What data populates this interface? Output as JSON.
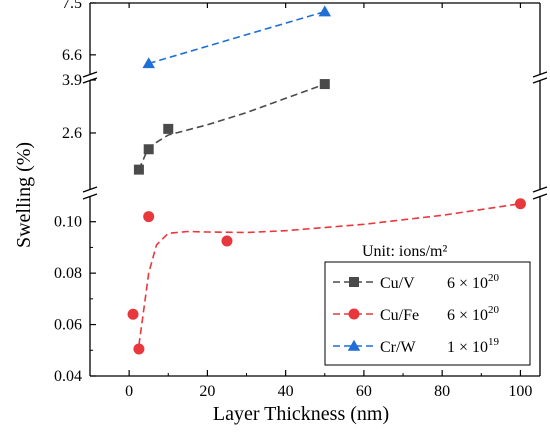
{
  "chart_data": {
    "type": "scatter",
    "xlabel": "Layer Thickness (nm)",
    "ylabel": "Swelling (%)",
    "xlim": [
      -10,
      105
    ],
    "x_ticks": [
      "0",
      "20",
      "40",
      "60",
      "80",
      "100"
    ],
    "x_tick_values": [
      0,
      20,
      40,
      60,
      80,
      100
    ],
    "y_segments": [
      {
        "name": "lower",
        "ylim": [
          0.04,
          0.11
        ],
        "ticks": [
          "0.04",
          "0.06",
          "0.08",
          "0.10"
        ],
        "tick_values": [
          0.04,
          0.06,
          0.08,
          0.1
        ]
      },
      {
        "name": "middle",
        "ylim": [
          1.2,
          3.9
        ],
        "ticks": [
          "2.6",
          "3.9"
        ],
        "tick_values": [
          2.6,
          3.9
        ]
      },
      {
        "name": "upper",
        "ylim": [
          6.25,
          7.5
        ],
        "ticks": [
          "6.6",
          "7.5"
        ],
        "tick_values": [
          6.6,
          7.5
        ]
      }
    ],
    "legend_title": "Unit: ions/m²",
    "legend_position": "lower-right",
    "grid": false,
    "series": [
      {
        "name": "Cu/V",
        "fluence_base": "6 × 10",
        "fluence_exp": "20",
        "color": "#4a4a4a",
        "marker": "square",
        "segment": "middle",
        "x": [
          2.5,
          5,
          10,
          50
        ],
        "y": [
          1.7,
          2.2,
          2.7,
          3.8
        ]
      },
      {
        "name": "Cu/Fe",
        "fluence_base": "6 × 10",
        "fluence_exp": "20",
        "color": "#e8383d",
        "marker": "circle",
        "segment": "lower",
        "x": [
          1,
          2.5,
          5,
          25,
          100
        ],
        "y": [
          0.064,
          0.0505,
          0.102,
          0.0925,
          0.107
        ]
      },
      {
        "name": "Cr/W",
        "fluence_base": "1 × 10",
        "fluence_exp": "19",
        "color": "#1f6fd6",
        "marker": "triangle",
        "segment": "upper",
        "x": [
          5,
          50
        ],
        "y": [
          6.45,
          7.35
        ]
      }
    ],
    "trend_lines": [
      {
        "series": "Cu/V",
        "segment": "middle",
        "x": [
          2.5,
          5,
          10,
          20,
          30,
          40,
          50
        ],
        "y": [
          1.7,
          2.25,
          2.55,
          2.8,
          3.1,
          3.45,
          3.8
        ]
      },
      {
        "series": "Cu/Fe",
        "segment": "lower",
        "x": [
          2.5,
          3.5,
          5,
          7,
          10,
          15,
          20,
          30,
          40,
          60,
          80,
          100
        ],
        "y": [
          0.052,
          0.063,
          0.08,
          0.091,
          0.0955,
          0.0962,
          0.096,
          0.0958,
          0.0965,
          0.099,
          0.1025,
          0.107
        ]
      },
      {
        "series": "Cr/W",
        "segment": "upper",
        "x": [
          5,
          50
        ],
        "y": [
          6.45,
          7.35
        ]
      }
    ]
  }
}
